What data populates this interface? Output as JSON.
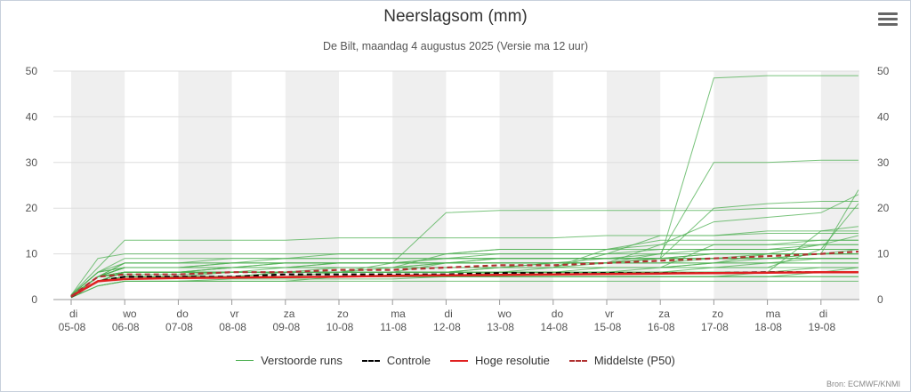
{
  "chart_data": {
    "type": "line",
    "title": "Neerslagsom (mm)",
    "subtitle": "De Bilt, maandag 4 augustus 2025 (Versie ma 12 uur)",
    "ylim": [
      0,
      50
    ],
    "y_ticks": [
      0,
      10,
      20,
      30,
      40,
      50
    ],
    "grid": true,
    "shaded_alternate_days": true,
    "x_ticks": [
      {
        "day": "di",
        "date": "05-08"
      },
      {
        "day": "wo",
        "date": "06-08"
      },
      {
        "day": "do",
        "date": "07-08"
      },
      {
        "day": "vr",
        "date": "08-08"
      },
      {
        "day": "za",
        "date": "09-08"
      },
      {
        "day": "zo",
        "date": "10-08"
      },
      {
        "day": "ma",
        "date": "11-08"
      },
      {
        "day": "di",
        "date": "12-08"
      },
      {
        "day": "wo",
        "date": "13-08"
      },
      {
        "day": "do",
        "date": "14-08"
      },
      {
        "day": "vr",
        "date": "15-08"
      },
      {
        "day": "za",
        "date": "16-08"
      },
      {
        "day": "zo",
        "date": "17-08"
      },
      {
        "day": "ma",
        "date": "18-08"
      },
      {
        "day": "di",
        "date": "19-08"
      }
    ],
    "x_days": [
      0,
      0.5,
      1,
      2,
      3,
      4,
      5,
      6,
      7,
      8,
      9,
      10,
      11,
      12,
      13,
      14,
      14.7
    ],
    "series": [
      {
        "name": "Verstoorde runs",
        "role": "ensemble",
        "color": "#4caf50",
        "members": [
          [
            1,
            9,
            10,
            10,
            10,
            10,
            10,
            10,
            10,
            10,
            10,
            10,
            10,
            10,
            10,
            10,
            10
          ],
          [
            1,
            7,
            13,
            13,
            13,
            13,
            13.5,
            13.5,
            13.5,
            13.5,
            13.5,
            14,
            14,
            14,
            14.5,
            14.5,
            14.5
          ],
          [
            0.5,
            5,
            8,
            8,
            9,
            9,
            10,
            10,
            10,
            11,
            11,
            11,
            12,
            12,
            12,
            13,
            13
          ],
          [
            0.5,
            3,
            4,
            4,
            4,
            4,
            4,
            4,
            4,
            4,
            4,
            4,
            4,
            4,
            4,
            4,
            4
          ],
          [
            0.8,
            5,
            6,
            6,
            7,
            7,
            7,
            7,
            7,
            7,
            8,
            8,
            8,
            8,
            8,
            9,
            9
          ],
          [
            0.6,
            4,
            5,
            5,
            5,
            6,
            6,
            6,
            6,
            6,
            6,
            6,
            6,
            7,
            7,
            7,
            7
          ],
          [
            0.7,
            5,
            5.5,
            5.5,
            6,
            6,
            6,
            7,
            8,
            9,
            9,
            9,
            9,
            10,
            10,
            10,
            10
          ],
          [
            0.5,
            4,
            5,
            5,
            5,
            5,
            5,
            5,
            5,
            5,
            5,
            5,
            5,
            5,
            5,
            5,
            5
          ],
          [
            0.9,
            6,
            7,
            7,
            7,
            7,
            8,
            8,
            9,
            10,
            10,
            10,
            11,
            11,
            11,
            12,
            12
          ],
          [
            0.4,
            3,
            4,
            4,
            4.5,
            4.5,
            4.5,
            4.5,
            5,
            5,
            5,
            5,
            5,
            5,
            6,
            6,
            6
          ],
          [
            0.8,
            5,
            7,
            7,
            8,
            8,
            8,
            8,
            8,
            9,
            9,
            9,
            9,
            9,
            10,
            10,
            10
          ],
          [
            1,
            6,
            9,
            9,
            9,
            9,
            9,
            9,
            9,
            9,
            9,
            9,
            9,
            9,
            9,
            9,
            9
          ],
          [
            0.6,
            4,
            6,
            6,
            6,
            6,
            7,
            7,
            7,
            7,
            7,
            8,
            8,
            9,
            9,
            10,
            11
          ],
          [
            0.7,
            5,
            7,
            7,
            7,
            8,
            8,
            8,
            8,
            8,
            8,
            9,
            10,
            11,
            11,
            11,
            11
          ],
          [
            0.5,
            4,
            6,
            6,
            6,
            7,
            7,
            7,
            8,
            8,
            8,
            8,
            9,
            9,
            9,
            9,
            9
          ],
          [
            0.8,
            5,
            8,
            8,
            8,
            8,
            8,
            8,
            8,
            8,
            8,
            8,
            10,
            30,
            30,
            30.5,
            30.5
          ],
          [
            0.7,
            5,
            6,
            6,
            7,
            7,
            7,
            7,
            7,
            7,
            8,
            8,
            9,
            20,
            21,
            21.5,
            21.5
          ],
          [
            0.6,
            4,
            5,
            5,
            6,
            6,
            6,
            6,
            6,
            7,
            7,
            7,
            7,
            8,
            9,
            10,
            24
          ],
          [
            0.9,
            6,
            7,
            7,
            7,
            8,
            8,
            8,
            19,
            19.5,
            19.5,
            19.5,
            19.5,
            19.5,
            20,
            20,
            20
          ],
          [
            0.7,
            5,
            6,
            6,
            6,
            6,
            6,
            6,
            8,
            8,
            8,
            8,
            9,
            48.5,
            49,
            49,
            49
          ],
          [
            0.6,
            4,
            6,
            6,
            6,
            6,
            6,
            6,
            6,
            7,
            7,
            10,
            14,
            14,
            15,
            15,
            15
          ],
          [
            0.5,
            4,
            5,
            5,
            5,
            6,
            6,
            6,
            6,
            6,
            6,
            7,
            7,
            7,
            7,
            11,
            21
          ],
          [
            0.8,
            5,
            7,
            7,
            7,
            7,
            7,
            7,
            7,
            7,
            7,
            11,
            13,
            13,
            13,
            13,
            13
          ],
          [
            0.6,
            5,
            6,
            6,
            6,
            6,
            6,
            6,
            6,
            6,
            6,
            6,
            6,
            6,
            6,
            6,
            6
          ],
          [
            0.7,
            5,
            7,
            7,
            7,
            7,
            8,
            8,
            8,
            8,
            8,
            8,
            8,
            8,
            8,
            8,
            8
          ],
          [
            0.5,
            4,
            5,
            5,
            5,
            5,
            6,
            6,
            6,
            6,
            6,
            6,
            7,
            8,
            10,
            12,
            14
          ],
          [
            0.8,
            5,
            7,
            7,
            8,
            8,
            8,
            8,
            9,
            9,
            9,
            9,
            9,
            9,
            9,
            9,
            9
          ],
          [
            0.6,
            4,
            5,
            5,
            5,
            5,
            5,
            5,
            5,
            5,
            5,
            5,
            5,
            5,
            5,
            5,
            5
          ],
          [
            0.7,
            5,
            6,
            6,
            6,
            6,
            6,
            8,
            8,
            8,
            8,
            8,
            12,
            17,
            18,
            19,
            23
          ],
          [
            0.9,
            6,
            8,
            8,
            8,
            9,
            9,
            9,
            9,
            9,
            9,
            9,
            9,
            10,
            10,
            10,
            10
          ],
          [
            0.6,
            4,
            6,
            6,
            6,
            6,
            6,
            6,
            6,
            6,
            7,
            7,
            7,
            7,
            8,
            8,
            8
          ],
          [
            0.7,
            5,
            6,
            6,
            7,
            7,
            7,
            7,
            7,
            7,
            7,
            7,
            7,
            12,
            12,
            12,
            12
          ],
          [
            0.5,
            3,
            4,
            4,
            4,
            4,
            5,
            5,
            5,
            5,
            5,
            5,
            5,
            5,
            5,
            6,
            7
          ],
          [
            0.8,
            5,
            7,
            7,
            7,
            7,
            7,
            7,
            10,
            11,
            11,
            11,
            11,
            11,
            11,
            11,
            11
          ],
          [
            0.6,
            4,
            5,
            5,
            5,
            5,
            5,
            5,
            5,
            6,
            6,
            6,
            6,
            6,
            6,
            7,
            7
          ],
          [
            0.7,
            5,
            6,
            6,
            6,
            6,
            6,
            6,
            6,
            6,
            6,
            6,
            6,
            6,
            6,
            15,
            16
          ]
        ]
      },
      {
        "name": "Controle",
        "role": "control",
        "color": "#000000",
        "dash": "6,4",
        "values": [
          0.6,
          4,
          5,
          5,
          5,
          5.5,
          5.5,
          5.5,
          5.5,
          5.8,
          5.8,
          5.8,
          5.8,
          5.8,
          6,
          6,
          6
        ]
      },
      {
        "name": "Hoge resolutie",
        "role": "highres",
        "color": "#e02020",
        "values": [
          0.7,
          4,
          4.5,
          4.7,
          4.8,
          4.9,
          5,
          5.2,
          5.3,
          5.4,
          5.5,
          5.6,
          5.7,
          5.8,
          5.9,
          6,
          6
        ]
      },
      {
        "name": "Middelste (P50)",
        "role": "median",
        "color": "#b03030",
        "dash": "6,4",
        "values": [
          0.7,
          5,
          5.5,
          5.5,
          6,
          6,
          6.5,
          6.5,
          7,
          7.5,
          7.5,
          8,
          8.5,
          9,
          9.5,
          10,
          10.5
        ]
      }
    ],
    "legend_position": "bottom",
    "credit": "Bron: ECMWF/KNMI"
  }
}
